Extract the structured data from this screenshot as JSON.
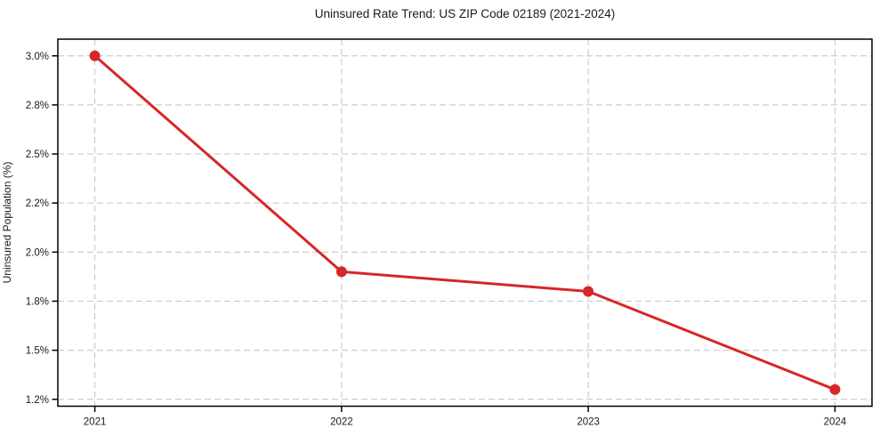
{
  "figure": {
    "background": "#ffffff"
  },
  "chart_data": {
    "type": "line",
    "title": "Uninsured Rate Trend: US ZIP Code 02189 (2021-2024)",
    "xlabel": "",
    "ylabel": "Uninsured Population (%)",
    "x": [
      2021,
      2022,
      2023,
      2024
    ],
    "series": [
      {
        "name": "uninsured-rate",
        "values": [
          3.0,
          1.9,
          1.8,
          1.3
        ],
        "color": "#d62728",
        "marker": "circle",
        "line_width": 3,
        "marker_radius": 6
      }
    ],
    "xticks": [
      {
        "value": 2021,
        "label": "2021"
      },
      {
        "value": 2022,
        "label": "2022"
      },
      {
        "value": 2023,
        "label": "2023"
      },
      {
        "value": 2024,
        "label": "2024"
      }
    ],
    "yticks": [
      {
        "value": 1.25,
        "label": "1.2%"
      },
      {
        "value": 1.5,
        "label": "1.5%"
      },
      {
        "value": 1.75,
        "label": "1.8%"
      },
      {
        "value": 2.0,
        "label": "2.0%"
      },
      {
        "value": 2.25,
        "label": "2.2%"
      },
      {
        "value": 2.5,
        "label": "2.5%"
      },
      {
        "value": 2.75,
        "label": "2.8%"
      },
      {
        "value": 3.0,
        "label": "3.0%"
      }
    ],
    "xlim": [
      2020.85,
      2024.15
    ],
    "ylim": [
      1.215,
      3.085
    ],
    "grid": {
      "show": true,
      "style": "dashed",
      "color": "#cdcdcd"
    },
    "legend": {
      "show": false,
      "position": "none"
    },
    "colors": {
      "spine": "#000000",
      "text": "#1a1a1a"
    }
  }
}
